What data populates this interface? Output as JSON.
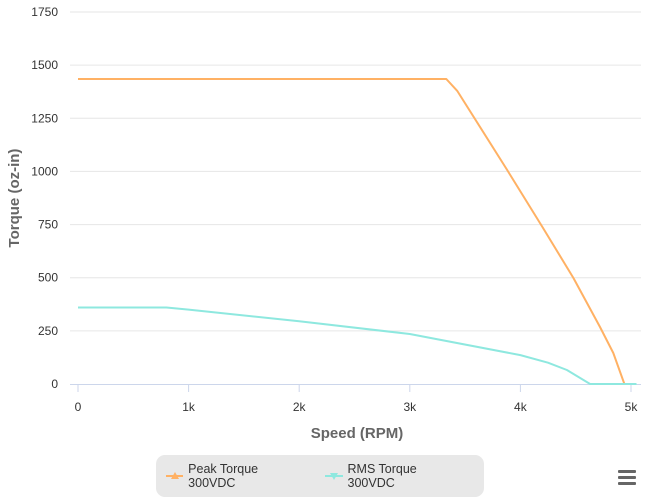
{
  "chart_data": {
    "type": "line",
    "title": "",
    "xlabel": "Speed (RPM)",
    "ylabel": "Torque (oz-in)",
    "xlim": [
      0,
      5000
    ],
    "ylim": [
      0,
      1750
    ],
    "xticks": [
      0,
      1000,
      2000,
      3000,
      4000,
      5000
    ],
    "xtick_labels": [
      "0",
      "1k",
      "2k",
      "3k",
      "4k",
      "5k"
    ],
    "yticks": [
      0,
      250,
      500,
      750,
      1000,
      1250,
      1500,
      1750
    ],
    "ytick_labels": [
      "0",
      "250",
      "500",
      "750",
      "1000",
      "1250",
      "1500",
      "1750"
    ],
    "grid": "horizontal",
    "legend_placement": "bottom-center",
    "series": [
      {
        "name": "Peak Torque 300VDC",
        "color": "#ffb164",
        "x": [
          0,
          3330,
          3430,
          3880,
          4200,
          4480,
          4720,
          4840,
          4940,
          5050
        ],
        "y": [
          1435,
          1435,
          1378,
          1007,
          738,
          498,
          268,
          146,
          0,
          0
        ]
      },
      {
        "name": "RMS Torque 300VDC",
        "color": "#8ee8df",
        "x": [
          0,
          800,
          1000,
          2000,
          3000,
          4000,
          4250,
          4420,
          4630,
          5050
        ],
        "y": [
          360,
          360,
          350,
          295,
          235,
          136,
          100,
          66,
          0,
          0
        ]
      }
    ]
  },
  "menu_icon": "hamburger-menu-icon"
}
